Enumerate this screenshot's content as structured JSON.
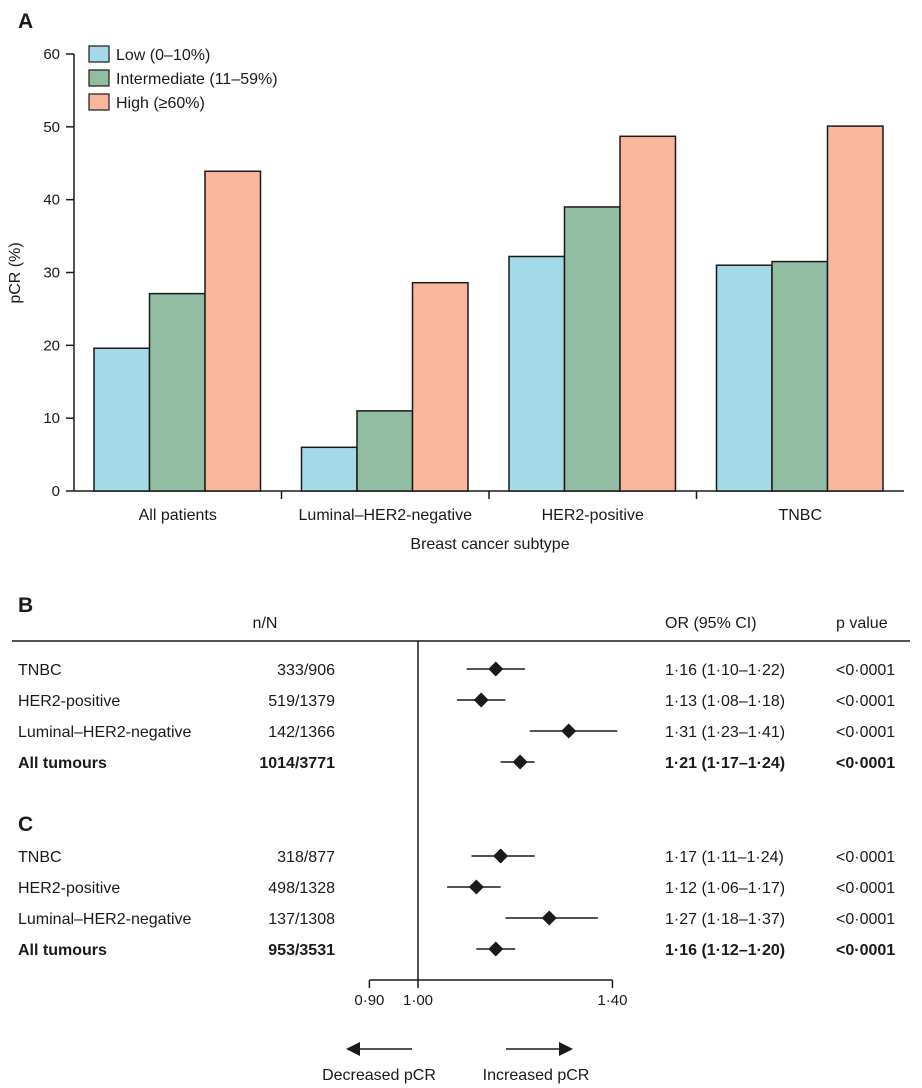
{
  "chart_data": [
    {
      "panel": "A",
      "type": "bar",
      "xlabel": "Breast cancer subtype",
      "ylabel": "pCR (%)",
      "ylim": [
        0,
        60
      ],
      "yticks": [
        "0",
        "10",
        "20",
        "30",
        "40",
        "50",
        "60"
      ],
      "grid": false,
      "legend_position": "top-left",
      "categories": [
        "All patients",
        "Luminal–HER2-negative",
        "HER2-positive",
        "TNBC"
      ],
      "series": [
        {
          "name": "Low (0–10%)",
          "color": "#a4d9e7",
          "values": [
            19.6,
            6.0,
            32.2,
            31.0
          ]
        },
        {
          "name": "Intermediate (11–59%)",
          "color": "#92bda2",
          "values": [
            27.1,
            11.0,
            39.0,
            31.5
          ]
        },
        {
          "name": "High (≥60%)",
          "color": "#f8b79d",
          "values": [
            43.9,
            28.6,
            48.7,
            50.1
          ]
        }
      ]
    },
    {
      "panel": "B",
      "type": "forest",
      "headers": {
        "n": "n/N",
        "or": "OR (95% CI)",
        "p": "p value"
      },
      "rows": [
        {
          "label": "TNBC",
          "n": "333/906",
          "or_text": "1·16 (1·10–1·22)",
          "p": "<0·0001",
          "or": 1.16,
          "lo": 1.1,
          "hi": 1.22,
          "bold": false
        },
        {
          "label": "HER2-positive",
          "n": "519/1379",
          "or_text": "1·13 (1·08–1·18)",
          "p": "<0·0001",
          "or": 1.13,
          "lo": 1.08,
          "hi": 1.18,
          "bold": false
        },
        {
          "label": "Luminal–HER2-negative",
          "n": "142/1366",
          "or_text": "1·31 (1·23–1·41)",
          "p": "<0·0001",
          "or": 1.31,
          "lo": 1.23,
          "hi": 1.41,
          "bold": false
        },
        {
          "label": "All tumours",
          "n": "1014/3771",
          "or_text": "1·21 (1·17–1·24)",
          "p": "<0·0001",
          "or": 1.21,
          "lo": 1.17,
          "hi": 1.24,
          "bold": true
        }
      ]
    },
    {
      "panel": "C",
      "type": "forest",
      "rows": [
        {
          "label": "TNBC",
          "n": "318/877",
          "or_text": "1·17 (1·11–1·24)",
          "p": "<0·0001",
          "or": 1.17,
          "lo": 1.11,
          "hi": 1.24,
          "bold": false
        },
        {
          "label": "HER2-positive",
          "n": "498/1328",
          "or_text": "1·12 (1·06–1·17)",
          "p": "<0·0001",
          "or": 1.12,
          "lo": 1.06,
          "hi": 1.17,
          "bold": false
        },
        {
          "label": "Luminal–HER2-negative",
          "n": "137/1308",
          "or_text": "1·27 (1·18–1·37)",
          "p": "<0·0001",
          "or": 1.27,
          "lo": 1.18,
          "hi": 1.37,
          "bold": false
        },
        {
          "label": "All tumours",
          "n": "953/3531",
          "or_text": "1·16 (1·12–1·20)",
          "p": "<0·0001",
          "or": 1.16,
          "lo": 1.12,
          "hi": 1.2,
          "bold": true
        }
      ],
      "xaxis": {
        "ticks": [
          {
            "value": 0.9,
            "label": "0·90"
          },
          {
            "value": 1.0,
            "label": "1·00"
          },
          {
            "value": 1.4,
            "label": "1·40"
          }
        ],
        "reference_line": 1.0,
        "left_arrow_label": "Decreased pCR",
        "right_arrow_label": "Increased pCR"
      }
    }
  ]
}
